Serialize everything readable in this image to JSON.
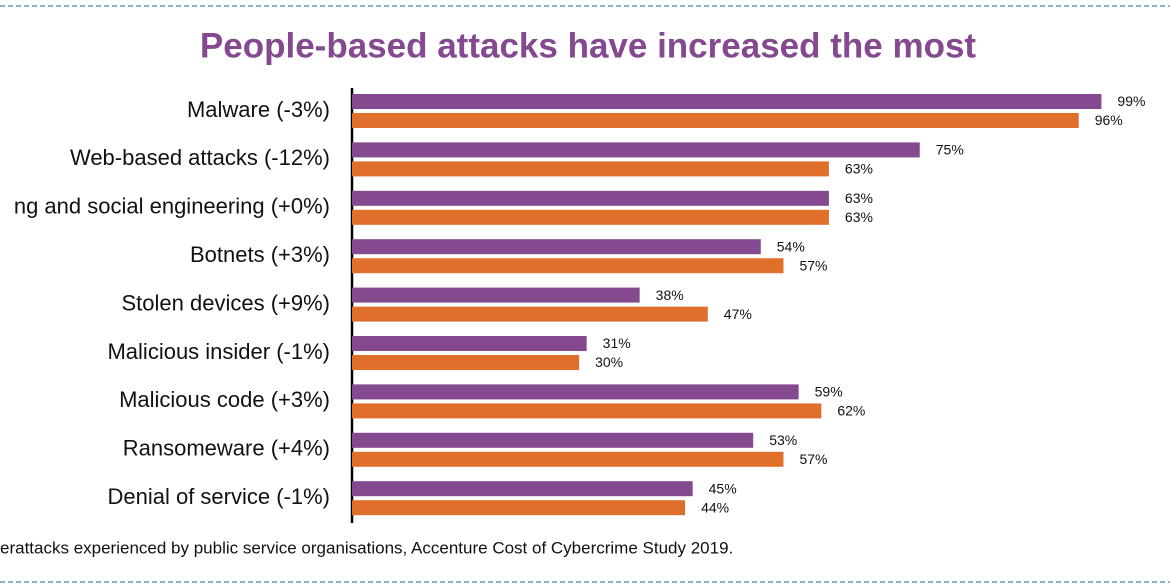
{
  "chart_data": {
    "type": "hbar",
    "title": "People-based attacks have increased the most",
    "categories": [
      "Malware (-3%)",
      "Web-based attacks (-12%)",
      "ng and social engineering (+0%)",
      "Botnets (+3%)",
      "Stolen devices (+9%)",
      "Malicious insider (-1%)",
      "Malicious code (+3%)",
      "Ransomeware (+4%)",
      "Denial of service (-1%)"
    ],
    "series": [
      {
        "color": "#84498f",
        "values": [
          99,
          75,
          63,
          54,
          38,
          31,
          59,
          53,
          45
        ],
        "value_labels": [
          "99%",
          "75%",
          "63%",
          "54%",
          "38%",
          "31%",
          "59%",
          "53%",
          "45%"
        ]
      },
      {
        "color": "#e06f2c",
        "values": [
          96,
          63,
          63,
          57,
          47,
          30,
          62,
          57,
          44
        ],
        "value_labels": [
          "96%",
          "63%",
          "63%",
          "57%",
          "47%",
          "30%",
          "62%",
          "57%",
          "44%"
        ]
      }
    ],
    "xlim": [
      0,
      100
    ],
    "footnote": "erattacks experienced by public service organisations, Accenture Cost of Cybercrime Study 2019."
  }
}
